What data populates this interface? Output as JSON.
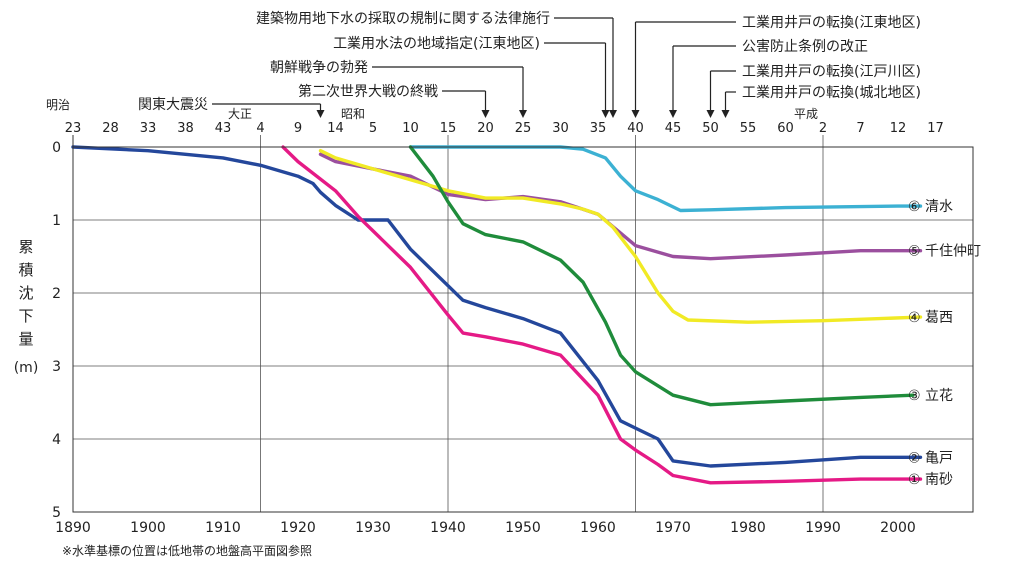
{
  "chart_data": {
    "type": "line",
    "ylabel": "累積沈下量(m)",
    "xlim": [
      1890,
      2010
    ],
    "ylim": [
      0,
      5
    ],
    "y_inverted": true,
    "x_ticks": [
      1890,
      1900,
      1910,
      1920,
      1930,
      1940,
      1950,
      1960,
      1970,
      1980,
      1990,
      2000
    ],
    "y_ticks": [
      0,
      1,
      2,
      3,
      4,
      5
    ],
    "era_labels": [
      {
        "label": "明治"
      },
      {
        "label": "大正"
      },
      {
        "label": "昭和"
      },
      {
        "label": "平成"
      }
    ],
    "era_year_ticks": [
      {
        "year": 1890,
        "label": "23"
      },
      {
        "year": 1895,
        "label": "28"
      },
      {
        "year": 1900,
        "label": "33"
      },
      {
        "year": 1905,
        "label": "38"
      },
      {
        "year": 1910,
        "label": "43"
      },
      {
        "year": 1915,
        "label": "4"
      },
      {
        "year": 1920,
        "label": "9"
      },
      {
        "year": 1925,
        "label": "14"
      },
      {
        "year": 1930,
        "label": "5"
      },
      {
        "year": 1935,
        "label": "10"
      },
      {
        "year": 1940,
        "label": "15"
      },
      {
        "year": 1945,
        "label": "20"
      },
      {
        "year": 1950,
        "label": "25"
      },
      {
        "year": 1955,
        "label": "30"
      },
      {
        "year": 1960,
        "label": "35"
      },
      {
        "year": 1965,
        "label": "40"
      },
      {
        "year": 1970,
        "label": "45"
      },
      {
        "year": 1975,
        "label": "50"
      },
      {
        "year": 1980,
        "label": "55"
      },
      {
        "year": 1985,
        "label": "60"
      },
      {
        "year": 1990,
        "label": "2"
      },
      {
        "year": 1995,
        "label": "7"
      },
      {
        "year": 2000,
        "label": "12"
      },
      {
        "year": 2005,
        "label": "17"
      }
    ],
    "events": [
      {
        "year": 1923,
        "label": "関東大震災"
      },
      {
        "year": 1945,
        "label": "第二次世界大戦の終戦"
      },
      {
        "year": 1950,
        "label": "朝鮮戦争の勃発"
      },
      {
        "year": 1961,
        "label": "工業用水法の地域指定(江東地区)"
      },
      {
        "year": 1962,
        "label": "建築物用地下水の採取の規制に関する法律施行"
      },
      {
        "year": 1965,
        "label": "工業用井戸の転換(江東地区)"
      },
      {
        "year": 1970,
        "label": "公害防止条例の改正"
      },
      {
        "year": 1975,
        "label": "工業用井戸の転換(江戸川区)"
      },
      {
        "year": 1977,
        "label": "工業用井戸の転換(城北地区)"
      }
    ],
    "series": [
      {
        "name": "⑥ 清水",
        "color": "#3cb1d3",
        "x": [
          1935,
          1945,
          1955,
          1958,
          1961,
          1963,
          1965,
          1968,
          1971,
          1975,
          1985,
          2000,
          2003
        ],
        "y": [
          0,
          0,
          0,
          0.03,
          0.15,
          0.4,
          0.6,
          0.72,
          0.87,
          0.86,
          0.83,
          0.81,
          0.81
        ]
      },
      {
        "name": "⑤ 千住仲町",
        "color": "#9b4f9e",
        "x": [
          1923,
          1925,
          1930,
          1935,
          1940,
          1945,
          1950,
          1955,
          1960,
          1965,
          1970,
          1975,
          1985,
          1995,
          2003
        ],
        "y": [
          0.1,
          0.2,
          0.3,
          0.4,
          0.65,
          0.72,
          0.68,
          0.75,
          0.92,
          1.35,
          1.5,
          1.53,
          1.48,
          1.42,
          1.42
        ]
      },
      {
        "name": "④ 葛西",
        "color": "#f1ea25",
        "x": [
          1923,
          1925,
          1930,
          1935,
          1940,
          1945,
          1950,
          1955,
          1958,
          1960,
          1962,
          1965,
          1968,
          1970,
          1972,
          1980,
          1990,
          2003
        ],
        "y": [
          0.05,
          0.15,
          0.3,
          0.45,
          0.6,
          0.7,
          0.7,
          0.78,
          0.85,
          0.92,
          1.1,
          1.5,
          2.0,
          2.25,
          2.37,
          2.4,
          2.38,
          2.33
        ]
      },
      {
        "name": "③ 立花",
        "color": "#1f8c3b",
        "x": [
          1935,
          1938,
          1940,
          1942,
          1945,
          1950,
          1955,
          1958,
          1961,
          1963,
          1965,
          1970,
          1975,
          1985,
          1995,
          2002
        ],
        "y": [
          0,
          0.4,
          0.75,
          1.05,
          1.2,
          1.3,
          1.55,
          1.85,
          2.4,
          2.85,
          3.08,
          3.4,
          3.53,
          3.48,
          3.43,
          3.4
        ]
      },
      {
        "name": "② 亀戸",
        "color": "#24479b",
        "x": [
          1890,
          1900,
          1910,
          1915,
          1920,
          1922,
          1923,
          1925,
          1928,
          1932,
          1935,
          1940,
          1942,
          1945,
          1950,
          1955,
          1960,
          1963,
          1965,
          1968,
          1970,
          1975,
          1985,
          1995,
          2003
        ],
        "y": [
          0,
          0.05,
          0.15,
          0.25,
          0.4,
          0.5,
          0.62,
          0.8,
          1.0,
          1.0,
          1.4,
          1.9,
          2.1,
          2.2,
          2.35,
          2.55,
          3.2,
          3.75,
          3.85,
          4.0,
          4.3,
          4.37,
          4.32,
          4.25,
          4.25
        ]
      },
      {
        "name": "① 南砂",
        "color": "#e51a86",
        "x": [
          1918,
          1920,
          1925,
          1928,
          1930,
          1935,
          1940,
          1942,
          1945,
          1950,
          1955,
          1960,
          1963,
          1965,
          1968,
          1970,
          1975,
          1985,
          1995,
          2003
        ],
        "y": [
          0,
          0.2,
          0.6,
          0.95,
          1.15,
          1.65,
          2.3,
          2.55,
          2.6,
          2.7,
          2.85,
          3.4,
          4.0,
          4.15,
          4.35,
          4.5,
          4.6,
          4.58,
          4.55,
          4.55
        ]
      }
    ],
    "note": "※水準基標の位置は低地帯の地盤高平面図参照"
  }
}
